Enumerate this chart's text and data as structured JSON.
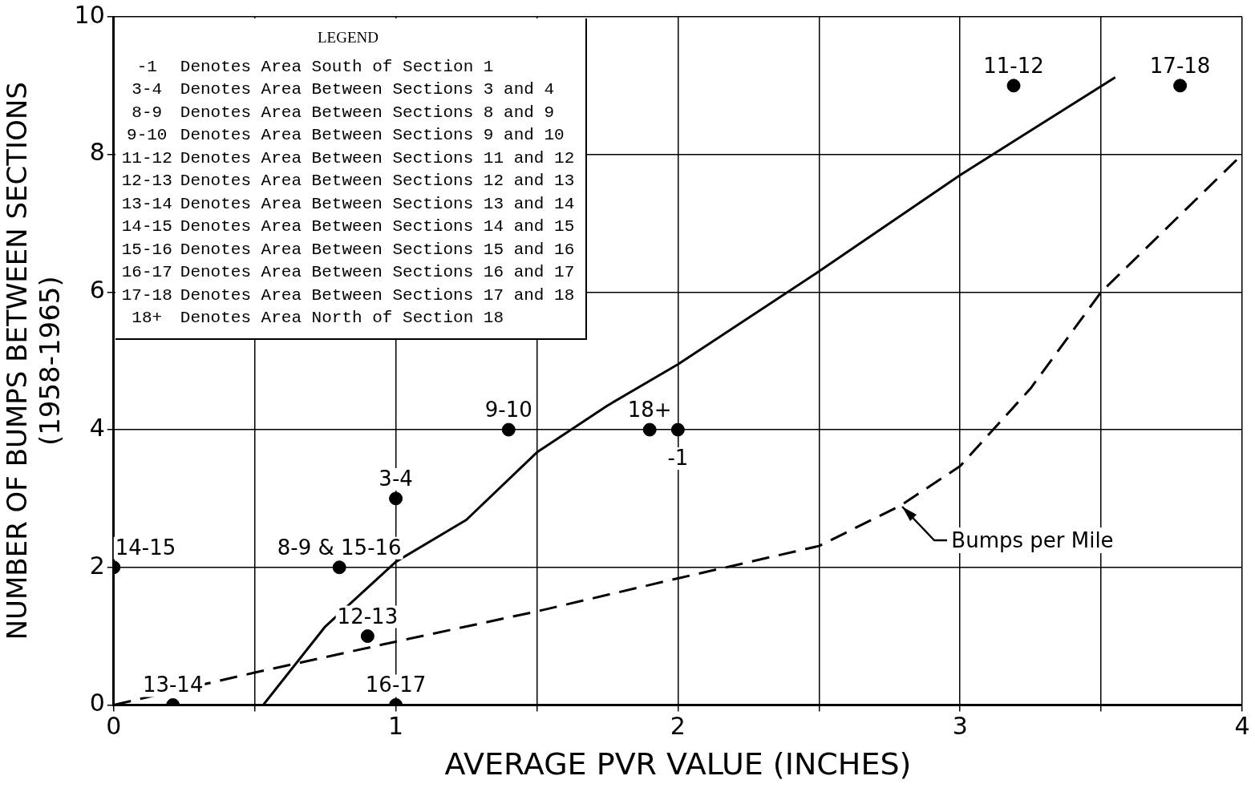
{
  "chart_data": {
    "type": "scatter",
    "xlabel": "AVERAGE PVR VALUE (INCHES)",
    "ylabel": "NUMBER OF BUMPS BETWEEN SECTIONS\n(1958-1965)",
    "xlim": [
      0,
      4
    ],
    "ylim": [
      0,
      10
    ],
    "xticks": [
      0,
      {
        "value": 0.5,
        "label": null
      },
      1,
      {
        "value": 1.5,
        "label": null
      },
      2,
      {
        "value": 2.5,
        "label": null
      },
      3,
      {
        "value": 3.5,
        "label": null
      },
      4
    ],
    "yticks": [
      0,
      2,
      4,
      6,
      8,
      10
    ],
    "grid": true,
    "legend": false,
    "marker": "circle",
    "annotations": [
      "LEGEND",
      "-1 Denotes Area South of Section 1",
      "3-4 Denotes Area Between Sections 3 and 4",
      "8-9 Denotes Area Between Sections 8 and 9",
      "9-10 Denotes Area Between Sections 9 and 10",
      "11-12 Denotes Area Between Sections 11 and 12",
      "12-13 Denotes Area Between Sections 12 and 13",
      "13-14 Denotes Area Between Sections 13 and 14",
      "14-15 Denotes Area Between Sections 14 and 15",
      "15-16 Denotes Area Between Sections 15 and 16",
      "16-17 Denotes Area Between Sections 16 and 17",
      "17-18 Denotes Area Between Sections 17 and 18",
      "18+ Denotes Area North of Section 18",
      {
        "text": "Bumps per Mile",
        "x": 2.79,
        "y": 2.9
      },
      {
        "text": "14-15",
        "x": 0,
        "y": 2
      },
      {
        "text": "13-14",
        "x": 0.21,
        "y": 0
      },
      {
        "text": "8-9 & 15-16",
        "x": 0.8,
        "y": 2
      },
      {
        "text": "12-13",
        "x": 0.9,
        "y": 1
      },
      {
        "text": "3-4",
        "x": 1,
        "y": 3
      },
      {
        "text": "16-17",
        "x": 1,
        "y": 0
      },
      {
        "text": "9-10",
        "x": 1.4,
        "y": 4
      },
      {
        "text": "18+",
        "x": 1.9,
        "y": 4
      },
      {
        "text": "-1",
        "x": 2,
        "y": 4
      },
      {
        "text": "11-12",
        "x": 3.19,
        "y": 9
      },
      {
        "text": "17-18",
        "x": 3.78,
        "y": 9
      }
    ],
    "series": [
      {
        "color": "#000000",
        "x": [
          0,
          0.21,
          0.8,
          0.9,
          1,
          1,
          1.4,
          1.9,
          2,
          3.19,
          3.78
        ],
        "values": [
          2,
          0,
          2,
          1,
          3,
          0,
          4,
          4,
          4,
          9,
          9
        ]
      },
      {
        "type": "line",
        "color": "#000000",
        "line_style": "solid",
        "marker": "none",
        "x": [
          0.53,
          0.75,
          1,
          1.25,
          1.5,
          1.75,
          2,
          2.5,
          3,
          3.55
        ],
        "values": [
          0,
          1.14,
          2.08,
          2.69,
          3.67,
          4.35,
          4.95,
          6.3,
          7.7,
          9.12
        ]
      },
      {
        "type": "line",
        "color": "#000000",
        "line_style": "dashed",
        "marker": "none",
        "x": [
          0,
          0.5,
          1,
          1.5,
          2,
          2.5,
          2.79,
          3,
          3.25,
          3.5,
          3.75,
          4
        ],
        "values": [
          0,
          0.47,
          0.92,
          1.36,
          1.84,
          2.31,
          2.9,
          3.47,
          4.6,
          6.0,
          7.0,
          8.0
        ]
      }
    ]
  }
}
